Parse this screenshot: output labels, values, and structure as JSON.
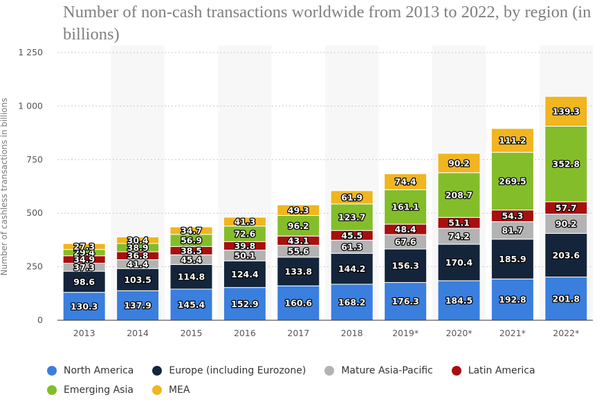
{
  "chart_data": {
    "type": "bar",
    "stacked": true,
    "title": "Number of non-cash transactions worldwide from 2013 to 2022, by region (in billions)",
    "xlabel": "",
    "ylabel": "Number of cashless transactions in billions",
    "ylim": [
      0,
      1250
    ],
    "yticks": [
      0,
      250,
      500,
      750,
      1000,
      1250
    ],
    "ytick_labels": [
      "0",
      "250",
      "500",
      "750",
      "1 000",
      "1 250"
    ],
    "categories": [
      "2013",
      "2014",
      "2015",
      "2016",
      "2017",
      "2018",
      "2019*",
      "2020*",
      "2021*",
      "2022*"
    ],
    "grid": true,
    "legend_position": "bottom",
    "series": [
      {
        "name": "North America",
        "color": "#3a7fde",
        "values": [
          130.3,
          137.9,
          145.4,
          152.9,
          160.6,
          168.2,
          176.3,
          184.5,
          192.8,
          201.8
        ]
      },
      {
        "name": "Europe (including Eurozone)",
        "color": "#14253b",
        "values": [
          98.6,
          103.5,
          114.8,
          124.4,
          133.8,
          144.2,
          156.3,
          170.4,
          185.9,
          203.6
        ]
      },
      {
        "name": "Mature Asia-Pacific",
        "color": "#b3b3b3",
        "values": [
          37.3,
          41.4,
          45.4,
          50.1,
          55.6,
          61.3,
          67.6,
          74.2,
          81.7,
          90.2
        ]
      },
      {
        "name": "Latin America",
        "color": "#a80f0f",
        "values": [
          34.9,
          36.8,
          38.5,
          39.8,
          43.1,
          45.5,
          48.4,
          51.1,
          54.3,
          57.7
        ]
      },
      {
        "name": "Emerging Asia",
        "color": "#84bd2a",
        "values": [
          29.4,
          38.9,
          56.9,
          72.6,
          96.2,
          123.7,
          161.1,
          208.7,
          269.5,
          352.8
        ]
      },
      {
        "name": "MEA",
        "color": "#f0b51f",
        "values": [
          27.3,
          30.4,
          34.7,
          41.3,
          49.3,
          61.9,
          74.4,
          90.2,
          111.2,
          139.3
        ]
      }
    ]
  }
}
